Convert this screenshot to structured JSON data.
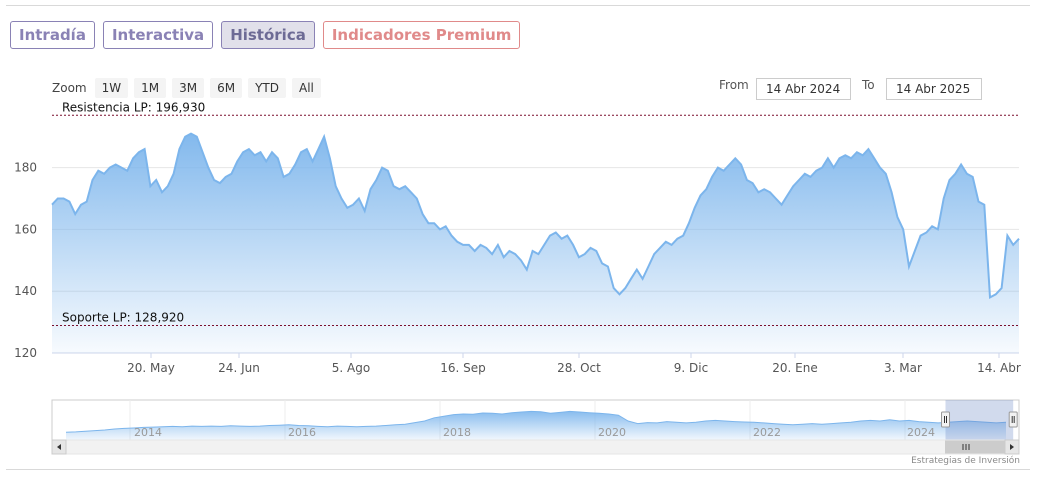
{
  "tabs": [
    {
      "label": "Intradía",
      "active": false
    },
    {
      "label": "Interactiva",
      "active": false
    },
    {
      "label": "Histórica",
      "active": true
    },
    {
      "label": "Indicadores Premium",
      "active": false
    }
  ],
  "zoom": {
    "label": "Zoom",
    "buttons": [
      "1W",
      "1M",
      "3M",
      "6M",
      "YTD",
      "All"
    ]
  },
  "range": {
    "from_label": "From",
    "from_value": "14 Abr 2024",
    "to_label": "To",
    "to_value": "14 Abr 2025"
  },
  "credit": "Estrategias de Inversión",
  "colors": {
    "line": "#7cb5ec",
    "tab": "#8a82b5",
    "premium": "#e08a8a",
    "plotline": "#7a0f2e"
  },
  "chart_data": {
    "type": "area",
    "ylim": [
      120,
      198
    ],
    "yticks": [
      120,
      140,
      160,
      180
    ],
    "x_tick_labels": [
      "20. May",
      "24. Jun",
      "5. Ago",
      "16. Sep",
      "28. Oct",
      "9. Dic",
      "20. Ene",
      "3. Mar",
      "14. Abr"
    ],
    "plot_lines": [
      {
        "label": "Resistencia LP: 196,930",
        "value": 196.93
      },
      {
        "label": "Soporte LP: 128,920",
        "value": 128.92
      }
    ],
    "series": [
      {
        "values": [
          168,
          170,
          170,
          169,
          165,
          168,
          169,
          176,
          179,
          178,
          180,
          181,
          180,
          179,
          183,
          185,
          186,
          174,
          176,
          172,
          174,
          178,
          186,
          190,
          191,
          190,
          185,
          180,
          176,
          175,
          177,
          178,
          182,
          185,
          186,
          184,
          185,
          182,
          185,
          183,
          177,
          178,
          181,
          185,
          186,
          182,
          186,
          190,
          183,
          174,
          170,
          167,
          168,
          170,
          166,
          173,
          176,
          180,
          179,
          174,
          173,
          174,
          172,
          170,
          165,
          162,
          162,
          160,
          161,
          158,
          156,
          155,
          155,
          153,
          155,
          154,
          152,
          155,
          151,
          153,
          152,
          150,
          147,
          153,
          152,
          155,
          158,
          159,
          157,
          158,
          155,
          151,
          152,
          154,
          153,
          149,
          148,
          141,
          139,
          141,
          144,
          147,
          144,
          148,
          152,
          154,
          156,
          155,
          157,
          158,
          162,
          167,
          171,
          173,
          177,
          180,
          179,
          181,
          183,
          181,
          176,
          175,
          172,
          173,
          172,
          170,
          168,
          171,
          174,
          176,
          178,
          177,
          179,
          180,
          183,
          180,
          183,
          184,
          183,
          185,
          184,
          186,
          183,
          180,
          178,
          172,
          164,
          160,
          148,
          153,
          158,
          159,
          161,
          160,
          170,
          176,
          178,
          181,
          178,
          177,
          169,
          168,
          138,
          139,
          141,
          158,
          155,
          157
        ]
      }
    ]
  },
  "navigator": {
    "year_labels": [
      "2014",
      "2016",
      "2018",
      "2020",
      "2022",
      "2024"
    ],
    "values": [
      0.15,
      0.16,
      0.18,
      0.2,
      0.22,
      0.25,
      0.27,
      0.28,
      0.3,
      0.31,
      0.32,
      0.33,
      0.32,
      0.34,
      0.33,
      0.34,
      0.33,
      0.35,
      0.34,
      0.33,
      0.34,
      0.36,
      0.37,
      0.38,
      0.36,
      0.35,
      0.33,
      0.32,
      0.34,
      0.33,
      0.32,
      0.33,
      0.34,
      0.36,
      0.38,
      0.4,
      0.45,
      0.5,
      0.6,
      0.65,
      0.7,
      0.72,
      0.71,
      0.75,
      0.74,
      0.72,
      0.76,
      0.78,
      0.8,
      0.79,
      0.74,
      0.77,
      0.8,
      0.78,
      0.76,
      0.74,
      0.72,
      0.68,
      0.5,
      0.42,
      0.45,
      0.44,
      0.48,
      0.46,
      0.44,
      0.46,
      0.5,
      0.52,
      0.5,
      0.48,
      0.47,
      0.46,
      0.44,
      0.42,
      0.4,
      0.38,
      0.4,
      0.42,
      0.4,
      0.42,
      0.44,
      0.46,
      0.5,
      0.52,
      0.5,
      0.54,
      0.5,
      0.52,
      0.48,
      0.46,
      0.44,
      0.46,
      0.48,
      0.5,
      0.48,
      0.46,
      0.44,
      0.46
    ],
    "selection": [
      0.924,
      0.994
    ]
  }
}
